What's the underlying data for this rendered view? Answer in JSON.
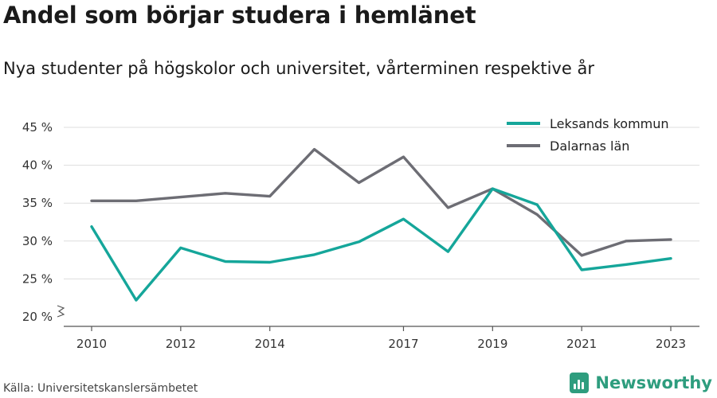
{
  "header": {
    "title": "Andel som börjar studera i hemlänet",
    "subtitle": "Nya studenter på högskolor och universitet, vårterminen respektive år"
  },
  "footer": {
    "source": "Källa: Universitetskanslersämbetet",
    "brand": "Newsworthy"
  },
  "colors": {
    "leksand": "#15a69a",
    "dalarna": "#6d6d74",
    "grid": "#dddddd",
    "axis": "#555555",
    "brand": "#2e9d7e"
  },
  "chart_data": {
    "type": "line",
    "x": [
      2010,
      2011,
      2012,
      2013,
      2014,
      2015,
      2016,
      2017,
      2018,
      2019,
      2020,
      2021,
      2022,
      2023
    ],
    "x_tick_values": [
      2010,
      2012,
      2014,
      2017,
      2019,
      2021,
      2023
    ],
    "x_tick_labels": [
      "2010",
      "2012",
      "2014",
      "2017",
      "2019",
      "2021",
      "2023"
    ],
    "y_ticks": [
      20,
      25,
      30,
      35,
      40,
      45
    ],
    "y_tick_labels": [
      "20 %",
      "25 %",
      "30 %",
      "35 %",
      "40 %",
      "45 %"
    ],
    "ylim": [
      20,
      45
    ],
    "xlim": [
      2010,
      2023
    ],
    "y_axis_break": true,
    "grid": true,
    "legend_position": "top-right",
    "series": [
      {
        "name": "Leksands kommun",
        "color": "#15a69a",
        "values": [
          31.9,
          22.2,
          29.1,
          27.3,
          27.2,
          28.2,
          29.9,
          32.9,
          28.6,
          36.9,
          34.8,
          26.2,
          26.9,
          27.7
        ]
      },
      {
        "name": "Dalarnas län",
        "color": "#6d6d74",
        "values": [
          35.3,
          35.3,
          35.8,
          36.3,
          35.9,
          42.1,
          37.7,
          41.1,
          34.4,
          36.9,
          33.5,
          28.1,
          30.0,
          30.2
        ]
      }
    ]
  }
}
